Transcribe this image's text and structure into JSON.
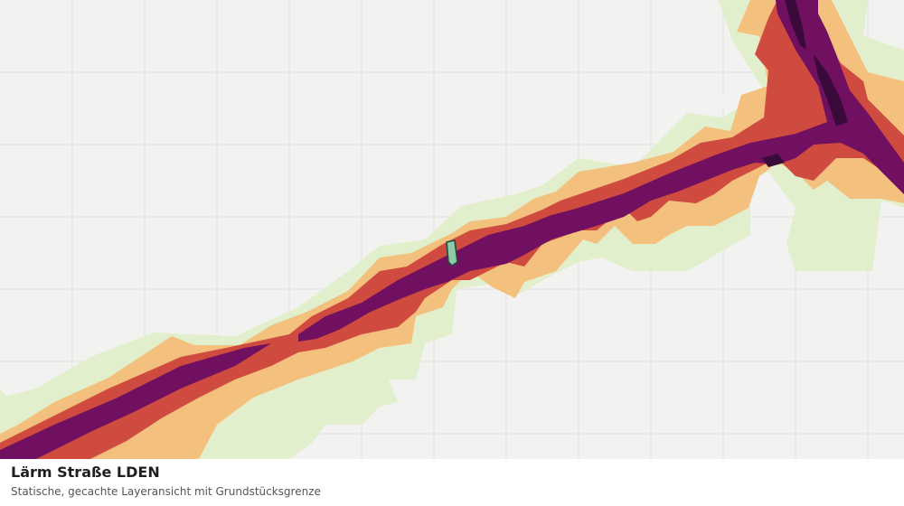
{
  "layer": {
    "title": "Lärm Straße LDEN",
    "subtitle": "Statische, gecachte Layeransicht mit Grundstücksgrenze"
  },
  "colors": {
    "background": "#f2f3f1",
    "grid": "#e0e1df",
    "band_lightest": "#e2efcc",
    "band_light": "#f3c07e",
    "band_medium": "#cf4b3f",
    "band_high": "#711060",
    "band_highest": "#3a0a3a",
    "parcel_fill": "#8ec9a8",
    "parcel_stroke": "#254a38"
  },
  "legend_order": [
    "band_lightest",
    "band_light",
    "band_medium",
    "band_high",
    "band_highest"
  ]
}
